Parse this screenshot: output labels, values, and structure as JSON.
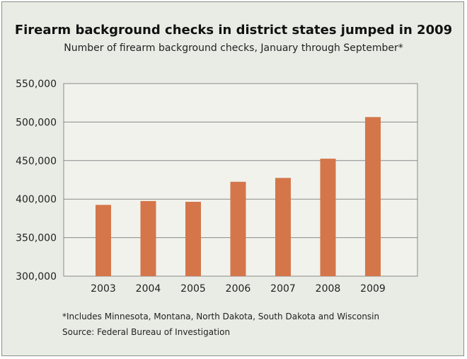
{
  "title": "Firearm background checks in district states jumped in 2009",
  "subtitle": "Number of firearm background checks, January through September*",
  "footnote": "*Includes Minnesota, Montana, North Dakota, South Dakota and Wisconsin",
  "source": "Source: Federal Bureau of Investigation",
  "colors": {
    "bar": "#d4764a",
    "plot_background": "#f1f2ec",
    "panel_background": "#e9ece4",
    "grid": "#8a8a8a"
  },
  "chart_data": {
    "type": "bar",
    "title": "Firearm background checks in district states jumped in 2009",
    "subtitle": "Number of firearm background checks, January through September*",
    "xlabel": "",
    "ylabel": "",
    "categories": [
      "2003",
      "2004",
      "2005",
      "2006",
      "2007",
      "2008",
      "2009"
    ],
    "values": [
      392500,
      397500,
      396500,
      422500,
      427500,
      452500,
      506500
    ],
    "ylim": [
      300000,
      550000
    ],
    "yticks": [
      300000,
      350000,
      400000,
      450000,
      500000,
      550000
    ],
    "ytick_labels": [
      "300,000",
      "350,000",
      "400,000",
      "450,000",
      "500,000",
      "550,000"
    ],
    "grid": true,
    "legend": "none"
  }
}
